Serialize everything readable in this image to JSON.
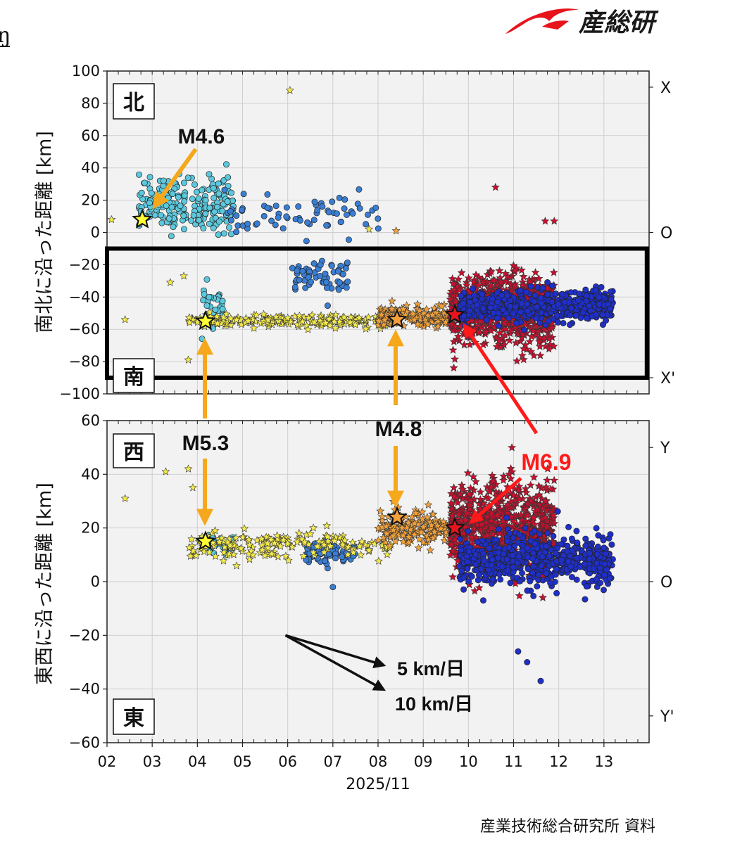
{
  "corner_mark": "ŋ",
  "logo": {
    "text": "産総研",
    "color": "#e8141c"
  },
  "source_note": "産業技術総合研究所 資料",
  "colors": {
    "plot_bg": "#f2f2f2",
    "grid": "#cccccc",
    "period1": "#5bc8dd",
    "period2": "#3a7ed4",
    "period3": "#f3e94a",
    "period4": "#f2a13a",
    "period5": "#c8102e",
    "period6": "#1f2fc7",
    "arrow_orange": "#f5a81c",
    "arrow_red": "#ff1a1a"
  },
  "icons": {
    "logo": "aist-swoosh-logo"
  },
  "chart_data": [
    {
      "type": "scatter",
      "panel": "north-south",
      "ylabel": "南北に沿った距離 [km]",
      "ylim": [
        -100,
        100
      ],
      "yticks": [
        "100",
        "80",
        "60",
        "40",
        "20",
        "0",
        "−20",
        "−40",
        "−60",
        "−80",
        "−100"
      ],
      "ytick_values": [
        100,
        80,
        60,
        40,
        20,
        0,
        -20,
        -40,
        -60,
        -80,
        -100
      ],
      "right_ticks": [
        {
          "label": "X",
          "y": 90
        },
        {
          "label": "O",
          "y": 0
        },
        {
          "label": "X'",
          "y": -90
        }
      ],
      "direction_labels": {
        "top": "北",
        "bottom": "南"
      },
      "highlight_box": {
        "x": [
          2.0,
          13.95
        ],
        "y": [
          -90,
          -10
        ]
      },
      "key_events": [
        {
          "label": "M4.6",
          "x": 2.78,
          "y": 8,
          "color": "#ffff33"
        },
        {
          "label": "M5.3",
          "x": 4.18,
          "y": -55,
          "color": "#ffff33"
        },
        {
          "label": "M4.8",
          "x": 8.42,
          "y": -54,
          "color": "#f5a03a"
        },
        {
          "label": "M6.9",
          "x": 9.7,
          "y": -51,
          "color": "#e8141c"
        }
      ],
      "clusters": [
        {
          "marker": "circle",
          "color": "#5bc8dd",
          "x_range": [
            2.7,
            4.8
          ],
          "y_center": 18,
          "y_spread": 14,
          "count": 220
        },
        {
          "marker": "circle",
          "color": "#5bc8dd",
          "x_range": [
            4.1,
            4.6
          ],
          "y_center": -45,
          "y_spread": 10,
          "count": 30
        },
        {
          "marker": "circle",
          "color": "#3a7ed4",
          "x_range": [
            4.6,
            8.1
          ],
          "y_center": 10,
          "y_spread": 10,
          "count": 70
        },
        {
          "marker": "circle",
          "color": "#3a7ed4",
          "x_range": [
            6.1,
            7.4
          ],
          "y_center": -28,
          "y_spread": 10,
          "count": 60
        },
        {
          "marker": "star",
          "color": "#f3e94a",
          "x_range": [
            3.8,
            8.3
          ],
          "y_center": -55,
          "y_spread": 3,
          "count": 200
        },
        {
          "marker": "star",
          "color": "#f2a13a",
          "x_range": [
            8.0,
            9.7
          ],
          "y_center": -52,
          "y_spread": 5,
          "count": 180
        },
        {
          "marker": "star",
          "color": "#c8102e",
          "x_range": [
            9.6,
            11.9
          ],
          "y_center": -48,
          "y_spread": 18,
          "count": 750
        },
        {
          "marker": "circle",
          "color": "#1f2fc7",
          "x_range": [
            9.8,
            13.2
          ],
          "y_center": -46,
          "y_spread": 8,
          "count": 600
        }
      ],
      "outliers": [
        {
          "marker": "star",
          "color": "#f3e94a",
          "x": 6.05,
          "y": 88
        },
        {
          "marker": "star",
          "color": "#f3e94a",
          "x": 2.1,
          "y": 8
        },
        {
          "marker": "star",
          "color": "#f3e94a",
          "x": 2.4,
          "y": -54
        },
        {
          "marker": "star",
          "color": "#f3e94a",
          "x": 3.4,
          "y": -31
        },
        {
          "marker": "star",
          "color": "#f3e94a",
          "x": 3.7,
          "y": -27
        },
        {
          "marker": "star",
          "color": "#f3e94a",
          "x": 3.8,
          "y": -79
        },
        {
          "marker": "star",
          "color": "#f3e94a",
          "x": 7.8,
          "y": 2
        },
        {
          "marker": "star",
          "color": "#f2a13a",
          "x": 8.4,
          "y": 1
        },
        {
          "marker": "star",
          "color": "#c8102e",
          "x": 10.6,
          "y": 28
        },
        {
          "marker": "star",
          "color": "#c8102e",
          "x": 11.7,
          "y": 7
        },
        {
          "marker": "star",
          "color": "#c8102e",
          "x": 11.9,
          "y": 7
        }
      ]
    },
    {
      "type": "scatter",
      "panel": "east-west",
      "ylabel": "東西に沿った距離 [km]",
      "xlabel": "2025/11",
      "ylim": [
        -60,
        60
      ],
      "yticks": [
        "60",
        "40",
        "20",
        "0",
        "−20",
        "−40",
        "−60"
      ],
      "ytick_values": [
        60,
        40,
        20,
        0,
        -20,
        -40,
        -60
      ],
      "xlim": [
        2,
        14
      ],
      "xticks": [
        "02",
        "03",
        "04",
        "05",
        "06",
        "07",
        "08",
        "09",
        "10",
        "11",
        "12",
        "13"
      ],
      "xtick_values": [
        2,
        3,
        4,
        5,
        6,
        7,
        8,
        9,
        10,
        11,
        12,
        13
      ],
      "right_ticks": [
        {
          "label": "Y",
          "y": 50
        },
        {
          "label": "O",
          "y": 0
        },
        {
          "label": "Y'",
          "y": -50
        }
      ],
      "direction_labels": {
        "top": "西",
        "bottom": "東"
      },
      "key_events": [
        {
          "label": "M5.3",
          "x": 4.18,
          "y": 15,
          "color": "#ffff33"
        },
        {
          "label": "M4.8",
          "x": 8.42,
          "y": 24,
          "color": "#f5a03a"
        },
        {
          "label": "M6.9",
          "x": 9.7,
          "y": 20,
          "color": "#e8141c"
        }
      ],
      "clusters": [
        {
          "marker": "circle",
          "color": "#5bc8dd",
          "x_range": [
            4.1,
            4.8
          ],
          "y_center": 14,
          "y_spread": 4,
          "count": 50
        },
        {
          "marker": "circle",
          "color": "#3a7ed4",
          "x_range": [
            6.4,
            7.1
          ],
          "y_center": 11,
          "y_spread": 3,
          "count": 70
        },
        {
          "marker": "circle",
          "color": "#3a7ed4",
          "x_range": [
            7.2,
            7.5
          ],
          "y_center": 10,
          "y_spread": 3,
          "count": 15
        },
        {
          "marker": "star",
          "color": "#f3e94a",
          "x_range": [
            3.8,
            8.3
          ],
          "y_center": 14,
          "y_spread": 4,
          "count": 180
        },
        {
          "marker": "star",
          "color": "#f2a13a",
          "x_range": [
            8.0,
            9.7
          ],
          "y_center": 20,
          "y_spread": 6,
          "count": 180
        },
        {
          "marker": "star",
          "color": "#c8102e",
          "x_range": [
            9.6,
            11.9
          ],
          "y_center": 20,
          "y_spread": 14,
          "count": 750
        },
        {
          "marker": "circle",
          "color": "#1f2fc7",
          "x_range": [
            9.8,
            13.2
          ],
          "y_center": 8,
          "y_spread": 8,
          "count": 600
        }
      ],
      "outliers": [
        {
          "marker": "star",
          "color": "#f3e94a",
          "x": 2.4,
          "y": 31
        },
        {
          "marker": "star",
          "color": "#f3e94a",
          "x": 3.3,
          "y": 41
        },
        {
          "marker": "star",
          "color": "#f3e94a",
          "x": 3.8,
          "y": 42
        },
        {
          "marker": "star",
          "color": "#f3e94a",
          "x": 3.9,
          "y": 35
        },
        {
          "marker": "circle",
          "color": "#3a7ed4",
          "x": 7.0,
          "y": -2
        },
        {
          "marker": "circle",
          "color": "#1f2fc7",
          "x": 11.6,
          "y": -37
        },
        {
          "marker": "circle",
          "color": "#1f2fc7",
          "x": 11.1,
          "y": -26
        },
        {
          "marker": "circle",
          "color": "#1f2fc7",
          "x": 11.3,
          "y": -30
        }
      ],
      "rate_guides": [
        {
          "label": "5 km/日",
          "from": [
            5.95,
            -20
          ],
          "to": [
            8.1,
            -31
          ]
        },
        {
          "label": "10 km/日",
          "from": [
            5.95,
            -20
          ],
          "to": [
            8.1,
            -40
          ]
        }
      ]
    }
  ],
  "annotations": {
    "m46": "M4.6",
    "m53": "M5.3",
    "m48": "M4.8",
    "m69": "M6.9"
  }
}
